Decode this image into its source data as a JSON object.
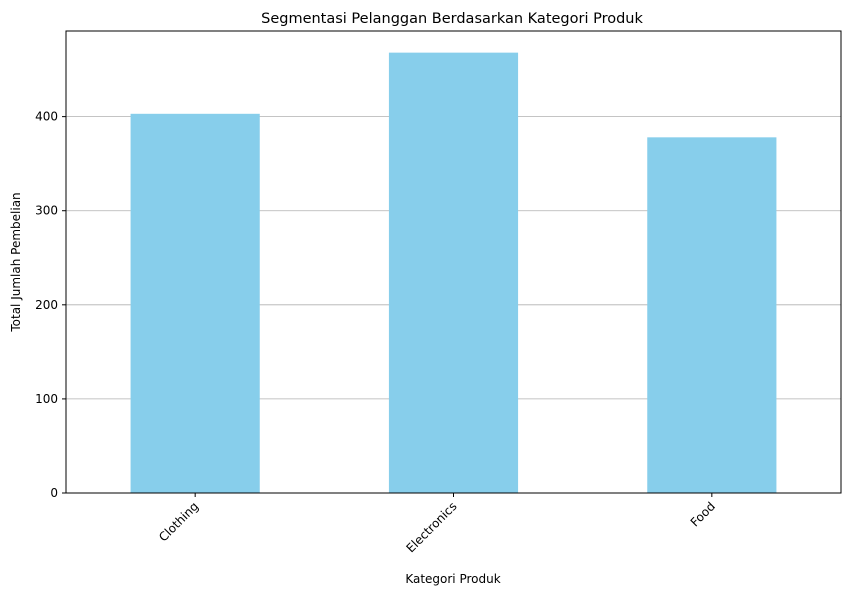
{
  "chart_data": {
    "type": "bar",
    "title": "Segmentasi Pelanggan Berdasarkan Kategori Produk",
    "xlabel": "Kategori Produk",
    "ylabel": "Total Jumlah Pembelian",
    "categories": [
      "Clothing",
      "Electronics",
      "Food"
    ],
    "values": [
      403,
      468,
      378
    ],
    "ylim": [
      0,
      491
    ],
    "yticks": [
      0,
      100,
      200,
      300,
      400
    ],
    "grid": "y",
    "legend": "none",
    "bar_color": "#87ceeb",
    "grid_color": "#b0b0b0"
  }
}
